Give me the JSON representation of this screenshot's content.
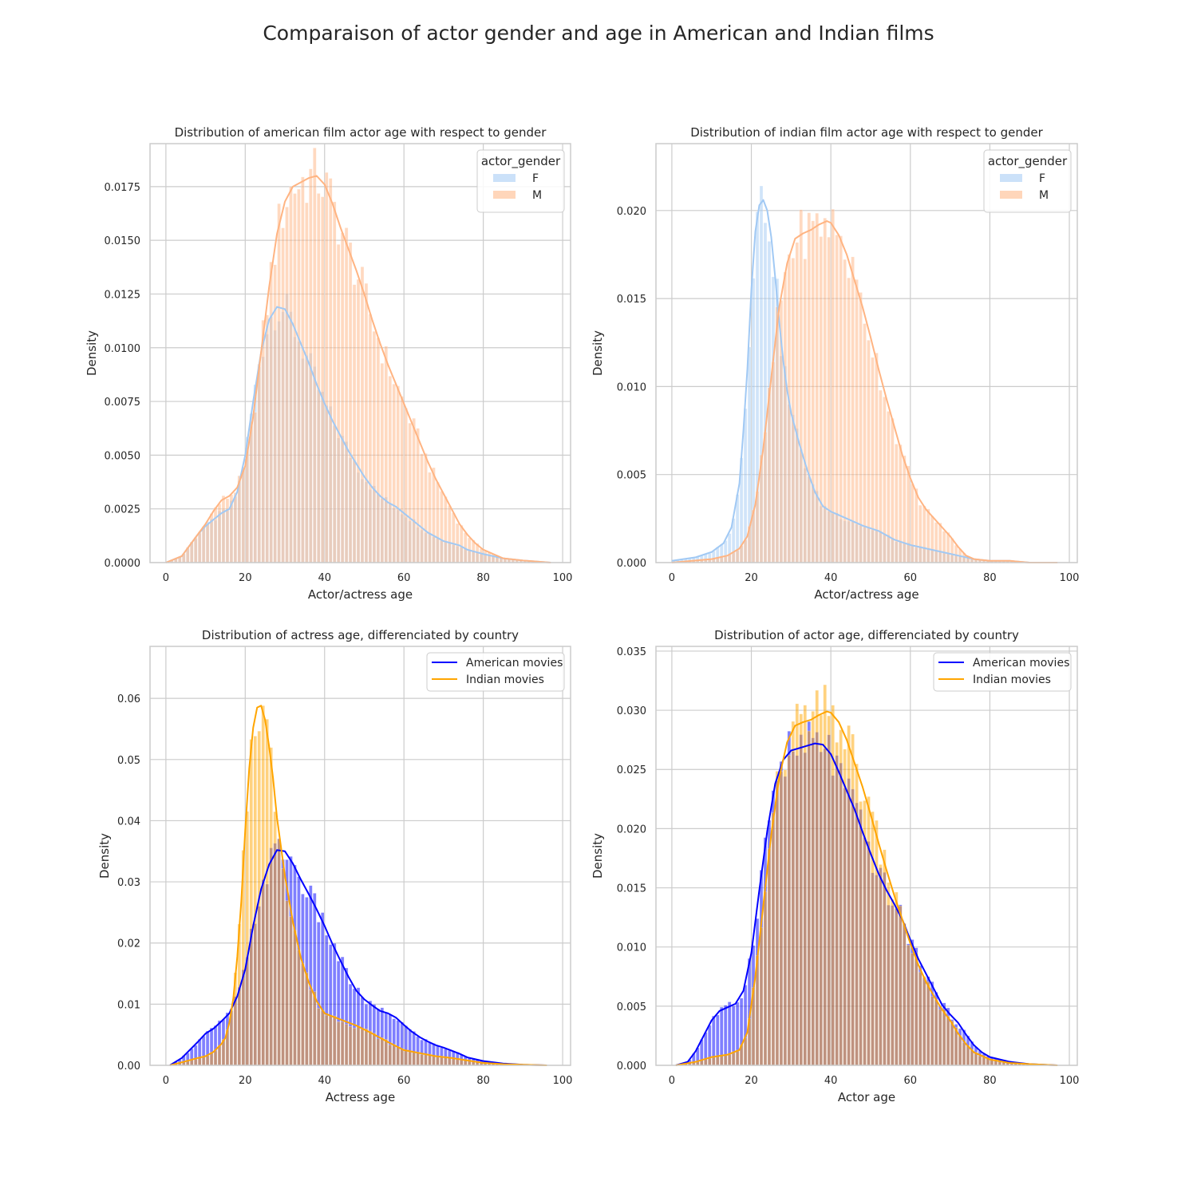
{
  "figure": {
    "title": "Comparaison of actor gender and age in American and Indian films",
    "colors": {
      "female": "#a1c9f4",
      "male": "#ffb482",
      "american": "#0000ff",
      "indian": "#ffa500",
      "grid": "#cccccc"
    }
  },
  "chart_data": [
    {
      "type": "area",
      "title": "Distribution of american film actor age with respect to gender",
      "xlabel": "Actor/actress age",
      "ylabel": "Density",
      "xlim": [
        -4,
        102
      ],
      "ylim": [
        0,
        0.0195
      ],
      "xticks": [
        0,
        20,
        40,
        60,
        80,
        100
      ],
      "yticks": [
        0.0,
        0.0025,
        0.005,
        0.0075,
        0.01,
        0.0125,
        0.015,
        0.0175
      ],
      "ytick_labels": [
        "0.0000",
        "0.0025",
        "0.0050",
        "0.0075",
        "0.0100",
        "0.0125",
        "0.0150",
        "0.0175"
      ],
      "grid": true,
      "legend": {
        "title": "actor_gender",
        "placement": "upper-right",
        "kind": "patch"
      },
      "series": [
        {
          "name": "F",
          "color": "#a1c9f4",
          "x": [
            0,
            4,
            8,
            10,
            12,
            14,
            16,
            18,
            20,
            22,
            24,
            26,
            28,
            30,
            32,
            34,
            36,
            38,
            40,
            42,
            44,
            46,
            48,
            50,
            52,
            54,
            56,
            58,
            60,
            62,
            64,
            66,
            68,
            70,
            72,
            74,
            76,
            78,
            80,
            85,
            90,
            97
          ],
          "y": [
            0.0,
            0.0003,
            0.0013,
            0.0017,
            0.002,
            0.0023,
            0.0025,
            0.0033,
            0.005,
            0.0075,
            0.0098,
            0.0113,
            0.0119,
            0.0118,
            0.0111,
            0.0102,
            0.0093,
            0.0083,
            0.0074,
            0.0066,
            0.0059,
            0.0052,
            0.0046,
            0.004,
            0.0035,
            0.0031,
            0.0028,
            0.0026,
            0.0023,
            0.002,
            0.0017,
            0.0014,
            0.0012,
            0.001,
            0.0009,
            0.0008,
            0.0006,
            0.0005,
            0.0004,
            0.0002,
            0.0001,
            0.0
          ]
        },
        {
          "name": "M",
          "color": "#ffb482",
          "x": [
            0,
            4,
            8,
            10,
            12,
            14,
            16,
            18,
            20,
            22,
            24,
            26,
            28,
            30,
            32,
            34,
            36,
            38,
            40,
            42,
            44,
            46,
            48,
            50,
            52,
            54,
            56,
            58,
            60,
            62,
            64,
            66,
            68,
            70,
            72,
            74,
            76,
            78,
            80,
            85,
            90,
            97
          ],
          "y": [
            0.0,
            0.0003,
            0.0013,
            0.0018,
            0.0024,
            0.0029,
            0.0031,
            0.0035,
            0.0045,
            0.0068,
            0.0098,
            0.0128,
            0.0153,
            0.0168,
            0.0175,
            0.0177,
            0.0179,
            0.018,
            0.0176,
            0.0167,
            0.0156,
            0.0146,
            0.0136,
            0.0125,
            0.0113,
            0.0102,
            0.0092,
            0.0083,
            0.0074,
            0.0065,
            0.0056,
            0.0047,
            0.0039,
            0.0032,
            0.0025,
            0.0018,
            0.0013,
            0.0009,
            0.0006,
            0.0002,
            0.0001,
            0.0
          ]
        }
      ]
    },
    {
      "type": "area",
      "title": "Distribution of indian film actor age with respect to gender",
      "xlabel": "Actor/actress age",
      "ylabel": "Density",
      "xlim": [
        -4,
        102
      ],
      "ylim": [
        0,
        0.0238
      ],
      "xticks": [
        0,
        20,
        40,
        60,
        80,
        100
      ],
      "yticks": [
        0.0,
        0.005,
        0.01,
        0.015,
        0.02
      ],
      "ytick_labels": [
        "0.000",
        "0.005",
        "0.010",
        "0.015",
        "0.020"
      ],
      "grid": true,
      "legend": {
        "title": "actor_gender",
        "placement": "upper-right",
        "kind": "patch"
      },
      "series": [
        {
          "name": "F",
          "color": "#a1c9f4",
          "x": [
            0,
            6,
            10,
            13,
            15,
            17,
            18,
            19,
            20,
            21,
            22,
            23,
            24,
            25,
            26,
            27,
            28,
            29,
            30,
            32,
            34,
            36,
            38,
            40,
            44,
            48,
            52,
            56,
            60,
            64,
            68,
            72,
            76,
            80,
            85,
            90,
            97
          ],
          "y": [
            0.0001,
            0.0003,
            0.0006,
            0.0011,
            0.002,
            0.0045,
            0.0075,
            0.011,
            0.0155,
            0.0188,
            0.0203,
            0.0206,
            0.02,
            0.0185,
            0.0162,
            0.0137,
            0.0115,
            0.0098,
            0.0085,
            0.0068,
            0.0053,
            0.004,
            0.0032,
            0.0029,
            0.0025,
            0.0021,
            0.0018,
            0.0013,
            0.001,
            0.0008,
            0.0006,
            0.0004,
            0.0002,
            0.0001,
            0.0001,
            0.0,
            0.0
          ]
        },
        {
          "name": "M",
          "color": "#ffb482",
          "x": [
            0,
            10,
            14,
            17,
            19,
            21,
            23,
            25,
            27,
            29,
            31,
            33,
            35,
            37,
            39,
            40,
            42,
            44,
            46,
            48,
            50,
            52,
            54,
            56,
            58,
            60,
            62,
            64,
            66,
            68,
            70,
            72,
            74,
            76,
            80,
            85,
            90,
            97
          ],
          "y": [
            0.0,
            0.0002,
            0.0004,
            0.0008,
            0.0015,
            0.0033,
            0.0065,
            0.0105,
            0.0145,
            0.017,
            0.0184,
            0.0187,
            0.0189,
            0.0192,
            0.0194,
            0.0193,
            0.0186,
            0.0175,
            0.016,
            0.0145,
            0.0128,
            0.011,
            0.0093,
            0.0077,
            0.0061,
            0.0048,
            0.0037,
            0.003,
            0.0025,
            0.002,
            0.0015,
            0.0009,
            0.0004,
            0.0002,
            0.0001,
            0.0001,
            0.0,
            0.0
          ]
        }
      ]
    },
    {
      "type": "area",
      "title": "Distribution of actress age, differenciated by country",
      "xlabel": "Actress age",
      "ylabel": "Density",
      "xlim": [
        -4,
        102
      ],
      "ylim": [
        0,
        0.0685
      ],
      "xticks": [
        0,
        20,
        40,
        60,
        80,
        100
      ],
      "yticks": [
        0.0,
        0.01,
        0.02,
        0.03,
        0.04,
        0.05,
        0.06
      ],
      "ytick_labels": [
        "0.00",
        "0.01",
        "0.02",
        "0.03",
        "0.04",
        "0.05",
        "0.06"
      ],
      "grid": true,
      "legend": {
        "placement": "upper-right",
        "kind": "line"
      },
      "series": [
        {
          "name": "American movies",
          "color": "#0000ff",
          "x": [
            1,
            4,
            8,
            10,
            12,
            14,
            16,
            18,
            20,
            22,
            24,
            26,
            28,
            30,
            32,
            34,
            36,
            38,
            40,
            42,
            44,
            46,
            48,
            50,
            52,
            54,
            56,
            58,
            60,
            62,
            64,
            66,
            68,
            70,
            72,
            74,
            76,
            78,
            80,
            85,
            90,
            96
          ],
          "y": [
            0.0,
            0.0012,
            0.0038,
            0.0052,
            0.006,
            0.0072,
            0.0085,
            0.0113,
            0.0157,
            0.0228,
            0.0288,
            0.0328,
            0.0352,
            0.035,
            0.033,
            0.0304,
            0.028,
            0.0255,
            0.0228,
            0.0198,
            0.0171,
            0.0145,
            0.0122,
            0.0108,
            0.0098,
            0.0089,
            0.0085,
            0.0078,
            0.0066,
            0.0055,
            0.0046,
            0.0039,
            0.0033,
            0.0029,
            0.0024,
            0.0019,
            0.0013,
            0.001,
            0.0007,
            0.0003,
            0.0001,
            0.0
          ]
        },
        {
          "name": "Indian movies",
          "color": "#ffa500",
          "x": [
            1,
            4,
            8,
            10,
            12,
            14,
            15,
            16,
            17,
            18,
            19,
            20,
            21,
            22,
            23,
            24,
            25,
            26,
            27,
            28,
            30,
            32,
            34,
            36,
            38,
            40,
            44,
            48,
            52,
            56,
            60,
            64,
            68,
            72,
            76,
            80,
            85,
            90,
            96
          ],
          "y": [
            0.0,
            0.0005,
            0.0012,
            0.0015,
            0.0022,
            0.0035,
            0.0045,
            0.007,
            0.011,
            0.0178,
            0.0268,
            0.0385,
            0.0485,
            0.0552,
            0.0585,
            0.0588,
            0.0565,
            0.0522,
            0.047,
            0.0405,
            0.031,
            0.0235,
            0.0176,
            0.0136,
            0.0105,
            0.0085,
            0.0075,
            0.0065,
            0.0052,
            0.0038,
            0.0025,
            0.002,
            0.0015,
            0.0012,
            0.0008,
            0.0004,
            0.0002,
            0.0001,
            0.0
          ]
        }
      ]
    },
    {
      "type": "area",
      "title": "Distribution of actor age, differenciated by country",
      "xlabel": "Actor age",
      "ylabel": "Density",
      "xlim": [
        -4,
        102
      ],
      "ylim": [
        0,
        0.0354
      ],
      "xticks": [
        0,
        20,
        40,
        60,
        80,
        100
      ],
      "yticks": [
        0.0,
        0.005,
        0.01,
        0.015,
        0.02,
        0.025,
        0.03,
        0.035
      ],
      "ytick_labels": [
        "0.000",
        "0.005",
        "0.010",
        "0.015",
        "0.020",
        "0.025",
        "0.030",
        "0.035"
      ],
      "grid": true,
      "legend": {
        "placement": "upper-right",
        "kind": "line"
      },
      "series": [
        {
          "name": "American movies",
          "color": "#0000ff",
          "x": [
            1,
            4,
            6,
            8,
            10,
            12,
            14,
            16,
            18,
            20,
            22,
            24,
            26,
            28,
            30,
            32,
            34,
            36,
            38,
            40,
            42,
            44,
            46,
            48,
            50,
            52,
            54,
            56,
            58,
            60,
            62,
            64,
            66,
            68,
            70,
            72,
            74,
            76,
            78,
            80,
            85,
            90,
            97
          ],
          "y": [
            0.0,
            0.0003,
            0.0012,
            0.0025,
            0.0038,
            0.0046,
            0.0049,
            0.0052,
            0.0063,
            0.0095,
            0.0148,
            0.0198,
            0.0238,
            0.0258,
            0.0266,
            0.0268,
            0.027,
            0.0272,
            0.0271,
            0.0263,
            0.0248,
            0.0232,
            0.0216,
            0.0197,
            0.0179,
            0.0162,
            0.0148,
            0.0136,
            0.0123,
            0.0106,
            0.009,
            0.0077,
            0.0064,
            0.0051,
            0.0043,
            0.0036,
            0.0026,
            0.0017,
            0.0011,
            0.0007,
            0.0003,
            0.0001,
            0.0
          ]
        },
        {
          "name": "Indian movies",
          "color": "#ffa500",
          "x": [
            1,
            6,
            10,
            14,
            17,
            19,
            21,
            23,
            25,
            27,
            29,
            31,
            33,
            35,
            37,
            39,
            40,
            42,
            44,
            46,
            48,
            50,
            52,
            54,
            56,
            58,
            60,
            62,
            64,
            66,
            68,
            70,
            72,
            74,
            76,
            80,
            85,
            90,
            97
          ],
          "y": [
            0.0,
            0.0003,
            0.0007,
            0.0009,
            0.0013,
            0.0028,
            0.0075,
            0.0135,
            0.0195,
            0.0243,
            0.0273,
            0.0287,
            0.029,
            0.0292,
            0.0296,
            0.0299,
            0.0298,
            0.029,
            0.0275,
            0.0255,
            0.0235,
            0.0212,
            0.0188,
            0.0165,
            0.0143,
            0.0123,
            0.0103,
            0.0085,
            0.007,
            0.0058,
            0.0047,
            0.0038,
            0.0027,
            0.0018,
            0.0011,
            0.0005,
            0.0002,
            0.0001,
            0.0
          ]
        }
      ]
    }
  ]
}
